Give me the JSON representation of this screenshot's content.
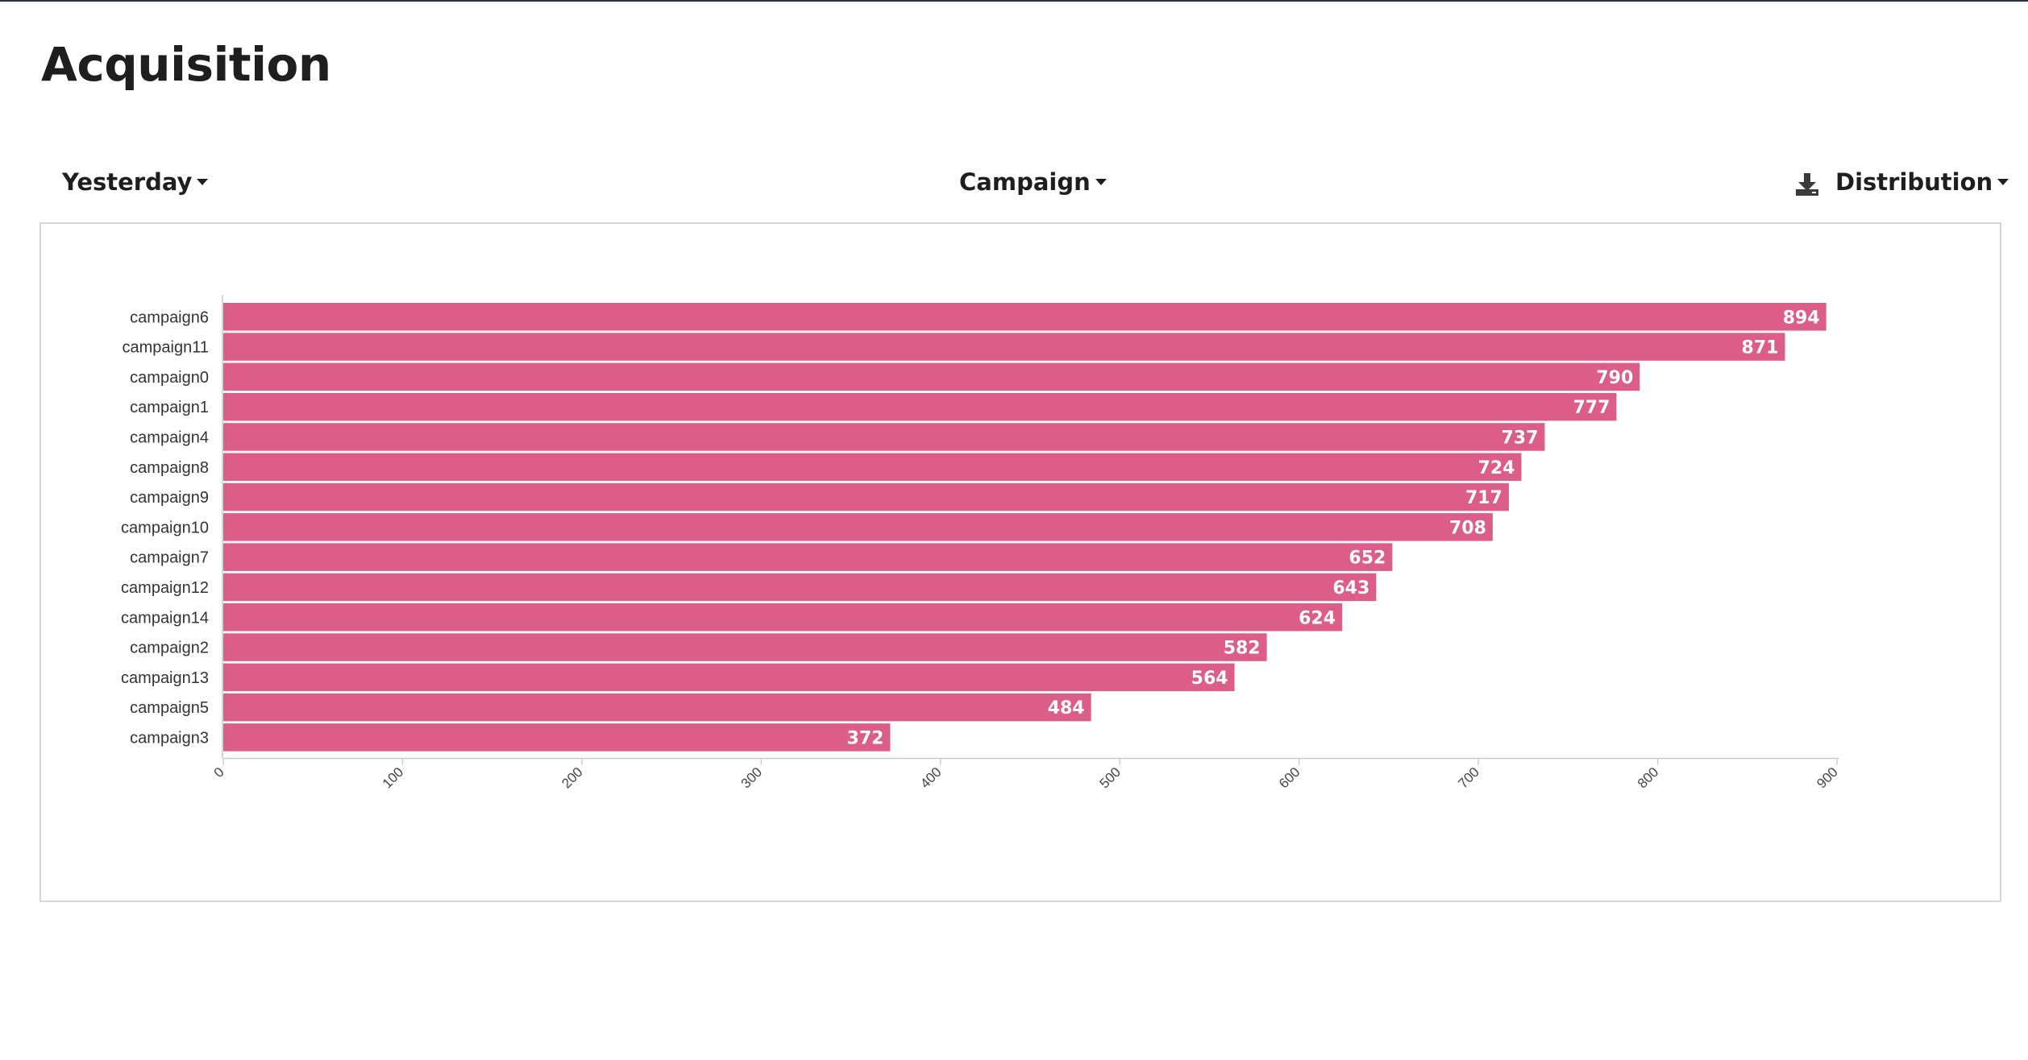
{
  "page": {
    "title": "Acquisition"
  },
  "toolbar": {
    "date_range": "Yesterday",
    "dimension": "Campaign",
    "chart_type": "Distribution",
    "download_icon": "download-icon"
  },
  "colors": {
    "bar": "#dc5d88",
    "axis": "#cccccc",
    "text": "#1e1e1e"
  },
  "chart_data": {
    "type": "bar",
    "orientation": "horizontal",
    "categories": [
      "campaign6",
      "campaign11",
      "campaign0",
      "campaign1",
      "campaign4",
      "campaign8",
      "campaign9",
      "campaign10",
      "campaign7",
      "campaign12",
      "campaign14",
      "campaign2",
      "campaign13",
      "campaign5",
      "campaign3"
    ],
    "values": [
      894,
      871,
      790,
      777,
      737,
      724,
      717,
      708,
      652,
      643,
      624,
      582,
      564,
      484,
      372
    ],
    "xlim": [
      0,
      900
    ],
    "xticks": [
      "0",
      "100",
      "200",
      "300",
      "400",
      "500",
      "600",
      "700",
      "800",
      "900"
    ],
    "data_labels": true,
    "grid": false,
    "title": "",
    "xlabel": "",
    "ylabel": ""
  }
}
